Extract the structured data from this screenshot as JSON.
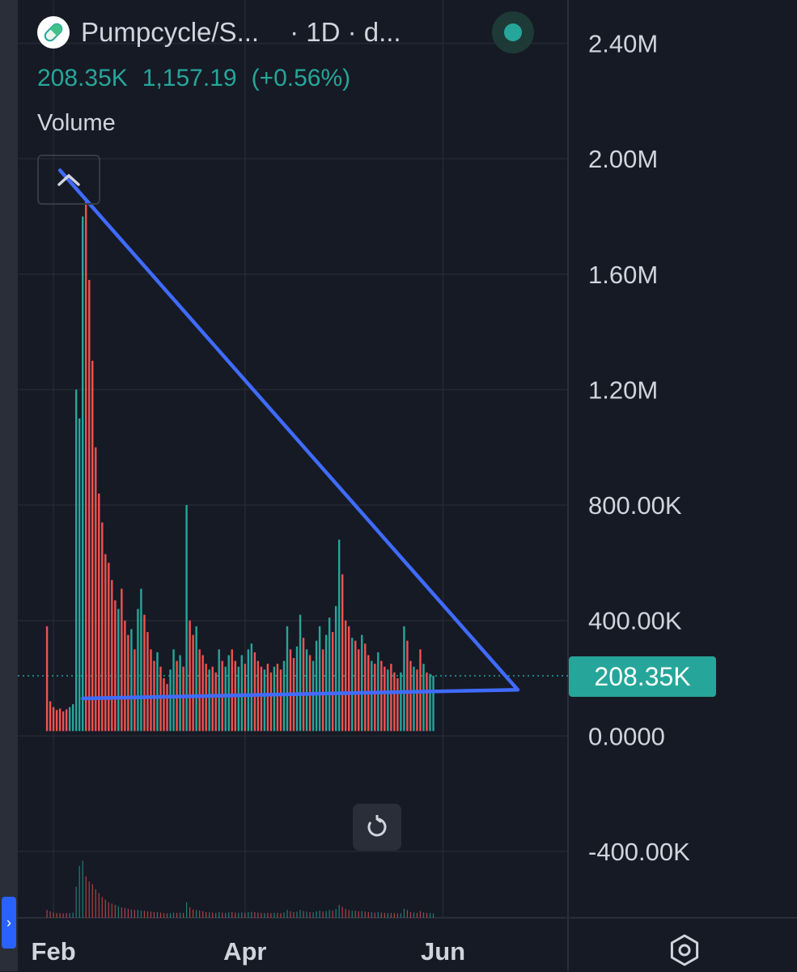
{
  "header": {
    "symbol": "Pumpcycle/S...",
    "interval": "· 1D · d...",
    "logo_icon": "pill-icon",
    "status_color": "#26a69a"
  },
  "quote": {
    "volume": "208.35K",
    "price": "1,157.19",
    "change": "(+0.56%)"
  },
  "indicator": {
    "label": "Volume"
  },
  "colors": {
    "background": "#161a25",
    "up": "#26a69a",
    "down": "#ef5350",
    "trendline": "#3f6bff",
    "text": "#d1d4dc",
    "grid": "#242834"
  },
  "chart_data": {
    "type": "bar",
    "series_name": "Volume",
    "title": "",
    "xlabel": "",
    "ylabel": "",
    "ylim": [
      -630000,
      2550000
    ],
    "y_ticks": [
      -400000,
      0,
      400000,
      800000,
      1200000,
      1600000,
      2000000,
      2400000
    ],
    "y_tick_labels": [
      "-400.00K",
      "0.0000",
      "400.00K",
      "800.00K",
      "1.20M",
      "1.60M",
      "2.00M",
      "2.40M"
    ],
    "x_range_days": [
      -9,
      158
    ],
    "x_tick_labels": [
      "Feb",
      "Apr",
      "Jun"
    ],
    "x_tick_days": [
      0,
      59,
      120
    ],
    "last_value": 208350,
    "last_value_label": "208.35K",
    "grid": true,
    "trendlines": [
      {
        "name": "upper",
        "points": [
          [
            2,
            1960000
          ],
          [
            143,
            160000
          ]
        ]
      },
      {
        "name": "lower",
        "points": [
          [
            9,
            130000
          ],
          [
            143,
            160000
          ]
        ]
      }
    ],
    "bars": [
      [
        -2,
        380000,
        30000,
        "d"
      ],
      [
        -1,
        120000,
        25000,
        "d"
      ],
      [
        0,
        100000,
        20000,
        "d"
      ],
      [
        1,
        90000,
        18000,
        "d"
      ],
      [
        2,
        95000,
        18000,
        "d"
      ],
      [
        3,
        85000,
        17000,
        "d"
      ],
      [
        4,
        92000,
        18000,
        "d"
      ],
      [
        5,
        100000,
        18000,
        "u"
      ],
      [
        6,
        110000,
        20000,
        "u"
      ],
      [
        7,
        1200000,
        120000,
        "u"
      ],
      [
        8,
        1100000,
        200000,
        "u"
      ],
      [
        9,
        1800000,
        220000,
        "u"
      ],
      [
        10,
        1850000,
        160000,
        "d"
      ],
      [
        11,
        1580000,
        140000,
        "d"
      ],
      [
        12,
        1300000,
        130000,
        "d"
      ],
      [
        13,
        1000000,
        110000,
        "d"
      ],
      [
        14,
        840000,
        95000,
        "d"
      ],
      [
        15,
        740000,
        80000,
        "d"
      ],
      [
        16,
        630000,
        70000,
        "d"
      ],
      [
        17,
        600000,
        60000,
        "d"
      ],
      [
        18,
        540000,
        55000,
        "d"
      ],
      [
        19,
        470000,
        50000,
        "d"
      ],
      [
        20,
        440000,
        45000,
        "u"
      ],
      [
        21,
        510000,
        40000,
        "d"
      ],
      [
        22,
        400000,
        38000,
        "d"
      ],
      [
        23,
        350000,
        35000,
        "d"
      ],
      [
        24,
        370000,
        32000,
        "u"
      ],
      [
        25,
        300000,
        30000,
        "d"
      ],
      [
        26,
        440000,
        30000,
        "u"
      ],
      [
        27,
        510000,
        28000,
        "u"
      ],
      [
        28,
        420000,
        27000,
        "d"
      ],
      [
        29,
        360000,
        25000,
        "d"
      ],
      [
        30,
        300000,
        24000,
        "d"
      ],
      [
        31,
        260000,
        22000,
        "d"
      ],
      [
        32,
        290000,
        22000,
        "u"
      ],
      [
        33,
        240000,
        20000,
        "d"
      ],
      [
        34,
        200000,
        18000,
        "d"
      ],
      [
        35,
        180000,
        17000,
        "d"
      ],
      [
        36,
        230000,
        18000,
        "u"
      ],
      [
        37,
        300000,
        20000,
        "u"
      ],
      [
        38,
        260000,
        19000,
        "d"
      ],
      [
        39,
        280000,
        20000,
        "u"
      ],
      [
        40,
        240000,
        19000,
        "d"
      ],
      [
        41,
        800000,
        60000,
        "u"
      ],
      [
        42,
        400000,
        40000,
        "d"
      ],
      [
        43,
        350000,
        32000,
        "d"
      ],
      [
        44,
        380000,
        30000,
        "u"
      ],
      [
        45,
        300000,
        28000,
        "d"
      ],
      [
        46,
        280000,
        25000,
        "d"
      ],
      [
        47,
        250000,
        22000,
        "d"
      ],
      [
        48,
        230000,
        21000,
        "u"
      ],
      [
        49,
        240000,
        20000,
        "d"
      ],
      [
        50,
        220000,
        19000,
        "d"
      ],
      [
        51,
        300000,
        22000,
        "u"
      ],
      [
        52,
        260000,
        20000,
        "d"
      ],
      [
        53,
        240000,
        19000,
        "u"
      ],
      [
        54,
        280000,
        21000,
        "u"
      ],
      [
        55,
        300000,
        22000,
        "d"
      ],
      [
        56,
        260000,
        20000,
        "d"
      ],
      [
        57,
        240000,
        19000,
        "u"
      ],
      [
        58,
        280000,
        21000,
        "u"
      ],
      [
        59,
        250000,
        20000,
        "d"
      ],
      [
        60,
        300000,
        22000,
        "u"
      ],
      [
        61,
        320000,
        23000,
        "u"
      ],
      [
        62,
        290000,
        22000,
        "d"
      ],
      [
        63,
        260000,
        20000,
        "d"
      ],
      [
        64,
        240000,
        19000,
        "d"
      ],
      [
        65,
        230000,
        18000,
        "u"
      ],
      [
        66,
        250000,
        19000,
        "d"
      ],
      [
        67,
        220000,
        18000,
        "d"
      ],
      [
        68,
        240000,
        19000,
        "u"
      ],
      [
        69,
        250000,
        19000,
        "d"
      ],
      [
        70,
        230000,
        18000,
        "d"
      ],
      [
        71,
        260000,
        20000,
        "u"
      ],
      [
        72,
        380000,
        30000,
        "u"
      ],
      [
        73,
        300000,
        25000,
        "d"
      ],
      [
        74,
        270000,
        22000,
        "d"
      ],
      [
        75,
        310000,
        24000,
        "u"
      ],
      [
        76,
        420000,
        30000,
        "u"
      ],
      [
        77,
        340000,
        26000,
        "d"
      ],
      [
        78,
        300000,
        24000,
        "u"
      ],
      [
        79,
        280000,
        22000,
        "d"
      ],
      [
        80,
        260000,
        21000,
        "u"
      ],
      [
        81,
        330000,
        25000,
        "u"
      ],
      [
        82,
        380000,
        28000,
        "u"
      ],
      [
        83,
        300000,
        24000,
        "d"
      ],
      [
        84,
        350000,
        26000,
        "u"
      ],
      [
        85,
        410000,
        30000,
        "u"
      ],
      [
        86,
        360000,
        28000,
        "d"
      ],
      [
        87,
        450000,
        34000,
        "u"
      ],
      [
        88,
        680000,
        50000,
        "u"
      ],
      [
        89,
        560000,
        42000,
        "d"
      ],
      [
        90,
        400000,
        34000,
        "d"
      ],
      [
        91,
        380000,
        30000,
        "d"
      ],
      [
        92,
        340000,
        28000,
        "u"
      ],
      [
        93,
        330000,
        27000,
        "d"
      ],
      [
        94,
        300000,
        25000,
        "d"
      ],
      [
        95,
        350000,
        26000,
        "u"
      ],
      [
        96,
        320000,
        24000,
        "d"
      ],
      [
        97,
        280000,
        22000,
        "d"
      ],
      [
        98,
        260000,
        21000,
        "u"
      ],
      [
        99,
        250000,
        20000,
        "d"
      ],
      [
        100,
        290000,
        22000,
        "u"
      ],
      [
        101,
        260000,
        20000,
        "d"
      ],
      [
        102,
        240000,
        19000,
        "d"
      ],
      [
        103,
        230000,
        18000,
        "u"
      ],
      [
        104,
        250000,
        19000,
        "d"
      ],
      [
        105,
        220000,
        18000,
        "d"
      ],
      [
        106,
        200000,
        17000,
        "d"
      ],
      [
        107,
        220000,
        18000,
        "u"
      ],
      [
        108,
        380000,
        35000,
        "u"
      ],
      [
        109,
        330000,
        30000,
        "d"
      ],
      [
        110,
        260000,
        22000,
        "d"
      ],
      [
        111,
        240000,
        20000,
        "u"
      ],
      [
        112,
        230000,
        19000,
        "d"
      ],
      [
        113,
        300000,
        26000,
        "d"
      ],
      [
        114,
        250000,
        21000,
        "u"
      ],
      [
        115,
        220000,
        19000,
        "d"
      ],
      [
        116,
        215000,
        18000,
        "u"
      ],
      [
        117,
        208350,
        17000,
        "u"
      ]
    ]
  }
}
